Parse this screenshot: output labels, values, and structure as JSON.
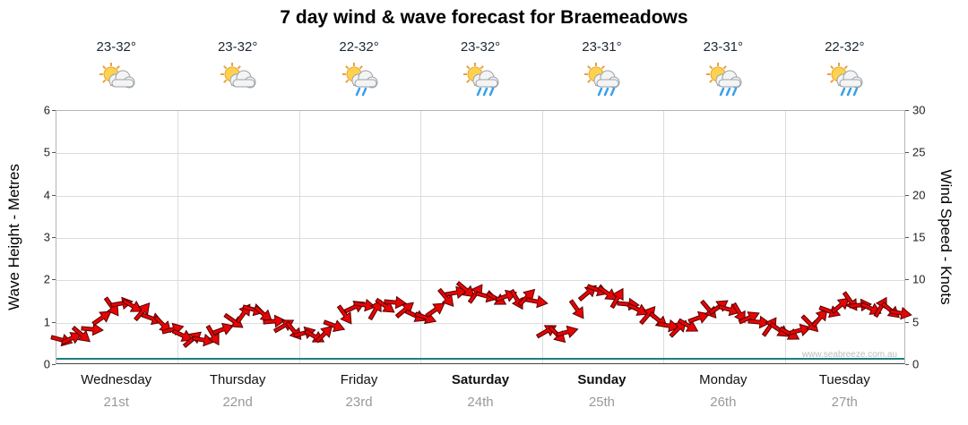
{
  "title": "7 day wind & wave forecast for Braemeadows",
  "watermark": "www.seabreeze.com.au",
  "axes": {
    "left_title": "Wave Height - Metres",
    "right_title": "Wind Speed - Knots"
  },
  "colors": {
    "arrow_fill": "#e60505",
    "arrow_outline": "#550000",
    "wave_line": "#1e7f7f",
    "date_text": "#999999",
    "grid": "#dcdcdc"
  },
  "days": [
    {
      "name": "Wednesday",
      "date": "21st",
      "temp": "23-32°",
      "icon": "sun-cloud",
      "bold": false
    },
    {
      "name": "Thursday",
      "date": "22nd",
      "temp": "23-32°",
      "icon": "sun-cloud",
      "bold": false
    },
    {
      "name": "Friday",
      "date": "23rd",
      "temp": "22-32°",
      "icon": "sun-cloud-rain",
      "bold": false
    },
    {
      "name": "Saturday",
      "date": "24th",
      "temp": "23-32°",
      "icon": "sun-cloud-showers",
      "bold": true
    },
    {
      "name": "Sunday",
      "date": "25th",
      "temp": "23-31°",
      "icon": "sun-cloud-showers",
      "bold": true
    },
    {
      "name": "Monday",
      "date": "26th",
      "temp": "23-31°",
      "icon": "sun-cloud-showers",
      "bold": false
    },
    {
      "name": "Tuesday",
      "date": "27th",
      "temp": "22-32°",
      "icon": "sun-cloud-showers",
      "bold": false
    }
  ],
  "chart_data": {
    "type": "scatter",
    "title": "7 day wind & wave forecast for Braemeadows",
    "left_axis": {
      "label": "Wave Height - Metres",
      "min": 0,
      "max": 6,
      "ticks": [
        0,
        1,
        2,
        3,
        4,
        5,
        6
      ]
    },
    "right_axis": {
      "label": "Wind Speed - Knots",
      "min": 0,
      "max": 30,
      "ticks": [
        0,
        5,
        10,
        15,
        20,
        25,
        30
      ]
    },
    "x_categories": [
      "Wednesday 21st",
      "Thursday 22nd",
      "Friday 23rd",
      "Saturday 24th",
      "Sunday 25th",
      "Monday 26th",
      "Tuesday 27th"
    ],
    "points_per_day": 12,
    "grid": true,
    "series": [
      {
        "name": "Wind Speed",
        "unit": "knots",
        "marker": "red-arrow",
        "values": [
          3.0,
          3.2,
          3.6,
          4.2,
          5.6,
          6.9,
          7.3,
          7.0,
          6.3,
          5.5,
          4.8,
          4.2,
          3.5,
          3.1,
          3.0,
          3.5,
          4.2,
          5.2,
          6.1,
          6.5,
          6.0,
          5.2,
          4.6,
          4.0,
          3.8,
          3.4,
          3.7,
          4.6,
          5.9,
          6.9,
          7.1,
          6.6,
          7.0,
          7.4,
          6.6,
          5.8,
          5.6,
          6.6,
          7.9,
          8.6,
          8.9,
          8.5,
          8.1,
          7.8,
          8.1,
          7.7,
          8.0,
          7.5,
          4.0,
          3.6,
          3.9,
          6.6,
          8.6,
          8.9,
          8.4,
          7.9,
          7.2,
          6.5,
          5.9,
          5.3,
          4.6,
          4.3,
          4.6,
          5.6,
          6.6,
          6.9,
          6.5,
          6.1,
          5.6,
          5.1,
          4.5,
          4.1,
          3.7,
          4.1,
          4.9,
          5.6,
          6.3,
          7.1,
          7.5,
          7.1,
          6.7,
          6.9,
          6.4,
          6.1
        ],
        "angles_deg": [
          15,
          -25,
          40,
          5,
          -35,
          55,
          -10,
          30,
          -50,
          20,
          45,
          -15,
          25,
          -40,
          10,
          60,
          -20,
          35,
          -55,
          15,
          40,
          -5,
          -30,
          50,
          -15,
          30,
          -45,
          20,
          55,
          -25,
          10,
          -60,
          35,
          5,
          -40,
          25,
          20,
          -35,
          50,
          -10,
          40,
          -55,
          15,
          30,
          -20,
          60,
          -45,
          10,
          -30,
          45,
          -15,
          55,
          -40,
          20,
          35,
          -60,
          5,
          25,
          -50,
          40,
          10,
          -45,
          30,
          -20,
          50,
          -35,
          15,
          60,
          -25,
          5,
          -55,
          35,
          30,
          -15,
          45,
          -50,
          20,
          -40,
          55,
          -5,
          25,
          -60,
          40,
          10
        ]
      },
      {
        "name": "Wave Height",
        "unit": "m",
        "type": "line",
        "constant_value": 0.08
      }
    ]
  }
}
